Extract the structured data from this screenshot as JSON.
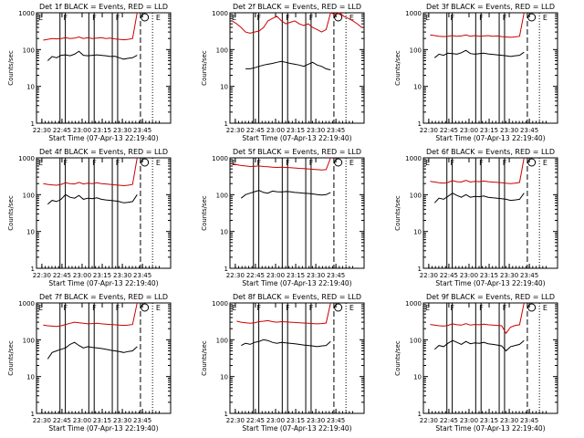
{
  "chart_data": [
    {
      "type": "line",
      "title": "Det 1f BLACK = Events, RED = LLD",
      "ylabel": "Counts/sec",
      "xlabel": "Start Time (07-Apr-13 22:19:40)",
      "x_ticks": [
        "22:30",
        "22:45",
        "23:00",
        "23:15",
        "23:30",
        "23:45"
      ],
      "y_ticks": [
        "1",
        "10",
        "100",
        "1000"
      ],
      "yscale": "log",
      "ylim": [
        1,
        1000
      ],
      "markers": [
        "F",
        "F",
        "F",
        "S",
        "E"
      ],
      "series": [
        {
          "color": "#000000",
          "values": [
            null,
            null,
            50,
            65,
            60,
            70,
            72,
            68,
            75,
            90,
            70,
            68,
            70,
            72,
            70,
            68,
            65,
            66,
            60,
            55,
            58,
            60,
            70,
            null,
            null,
            null,
            null,
            null,
            null,
            null
          ]
        },
        {
          "color": "#cc0000",
          "values": [
            null,
            180,
            190,
            200,
            195,
            200,
            210,
            200,
            205,
            220,
            200,
            210,
            200,
            205,
            210,
            200,
            205,
            195,
            190,
            185,
            190,
            200,
            1000,
            null,
            null,
            null,
            null,
            null,
            null,
            null
          ]
        }
      ]
    },
    {
      "type": "line",
      "title": "Det 2f BLACK = Events, RED = LLD",
      "ylabel": "Counts/sec",
      "xlabel": "Start Time (07-Apr-13 22:19:40)",
      "x_ticks": [
        "22:30",
        "22:45",
        "23:00",
        "23:15",
        "23:30",
        "23:45"
      ],
      "y_ticks": [
        "1",
        "10",
        "100",
        "1000"
      ],
      "yscale": "log",
      "ylim": [
        1,
        1000
      ],
      "markers": [
        "F",
        "F",
        "F",
        "S",
        "E"
      ],
      "series": [
        {
          "color": "#000000",
          "values": [
            null,
            null,
            null,
            30,
            30,
            32,
            35,
            38,
            40,
            42,
            45,
            48,
            45,
            42,
            40,
            38,
            35,
            40,
            45,
            38,
            35,
            30,
            28,
            null,
            null,
            null,
            null,
            null,
            null,
            null
          ]
        },
        {
          "color": "#cc0000",
          "values": [
            600,
            500,
            400,
            300,
            280,
            300,
            320,
            400,
            600,
            700,
            800,
            600,
            500,
            550,
            600,
            500,
            450,
            500,
            400,
            350,
            300,
            350,
            1000,
            900,
            1000,
            800,
            700,
            600,
            500,
            400
          ]
        }
      ]
    },
    {
      "type": "line",
      "title": "Det 3f BLACK = Events, RED = LLD",
      "ylabel": "Counts/sec",
      "xlabel": "Start Time (07-Apr-13 22:19:40)",
      "x_ticks": [
        "22:30",
        "22:45",
        "23:00",
        "23:15",
        "23:30",
        "23:45"
      ],
      "y_ticks": [
        "1",
        "10",
        "100",
        "1000"
      ],
      "yscale": "log",
      "ylim": [
        1,
        1000
      ],
      "markers": [
        "F",
        "F",
        "F",
        "S",
        "E"
      ],
      "series": [
        {
          "color": "#000000",
          "values": [
            null,
            null,
            60,
            75,
            70,
            80,
            78,
            75,
            82,
            95,
            78,
            75,
            78,
            80,
            76,
            74,
            72,
            70,
            68,
            65,
            68,
            70,
            85,
            null,
            null,
            null,
            null,
            null,
            null,
            null
          ]
        },
        {
          "color": "#cc0000",
          "values": [
            null,
            250,
            240,
            230,
            225,
            230,
            240,
            230,
            235,
            250,
            230,
            240,
            230,
            235,
            240,
            230,
            235,
            225,
            220,
            215,
            220,
            230,
            1000,
            null,
            null,
            null,
            null,
            null,
            null,
            null
          ]
        }
      ]
    },
    {
      "type": "line",
      "title": "Det 4f BLACK = Events, RED = LLD",
      "ylabel": "Counts/sec",
      "xlabel": "Start Time (07-Apr-13 22:19:40)",
      "x_ticks": [
        "22:30",
        "22:45",
        "23:00",
        "23:15",
        "23:30",
        "23:45"
      ],
      "y_ticks": [
        "1",
        "10",
        "100",
        "1000"
      ],
      "yscale": "log",
      "ylim": [
        1,
        1000
      ],
      "markers": [
        "F",
        "F",
        "F",
        "S",
        "E"
      ],
      "series": [
        {
          "color": "#000000",
          "values": [
            null,
            null,
            55,
            70,
            65,
            75,
            100,
            85,
            80,
            95,
            75,
            80,
            78,
            82,
            75,
            72,
            70,
            68,
            65,
            60,
            62,
            65,
            100,
            null,
            null,
            null,
            null,
            null,
            null,
            null
          ]
        },
        {
          "color": "#cc0000",
          "values": [
            null,
            200,
            190,
            185,
            180,
            190,
            210,
            200,
            195,
            215,
            195,
            205,
            200,
            210,
            200,
            195,
            190,
            185,
            180,
            175,
            180,
            190,
            1000,
            null,
            null,
            null,
            null,
            null,
            null,
            null
          ]
        }
      ]
    },
    {
      "type": "line",
      "title": "Det 5f BLACK = Events, RED = LLD",
      "ylabel": "Counts/sec",
      "xlabel": "Start Time (07-Apr-13 22:19:40)",
      "x_ticks": [
        "22:30",
        "22:45",
        "23:00",
        "23:15",
        "23:30",
        "23:45"
      ],
      "y_ticks": [
        "1",
        "10",
        "100",
        "1000"
      ],
      "yscale": "log",
      "ylim": [
        1,
        1000
      ],
      "markers": [
        "F",
        "F",
        "F",
        "S",
        "E"
      ],
      "series": [
        {
          "color": "#000000",
          "values": [
            null,
            null,
            80,
            100,
            110,
            120,
            130,
            115,
            110,
            125,
            120,
            118,
            122,
            120,
            115,
            112,
            110,
            108,
            105,
            100,
            98,
            100,
            115,
            null,
            null,
            null,
            null,
            null,
            null,
            null
          ]
        },
        {
          "color": "#cc0000",
          "values": [
            700,
            650,
            620,
            600,
            580,
            590,
            600,
            580,
            570,
            560,
            550,
            560,
            550,
            540,
            530,
            520,
            510,
            500,
            490,
            480,
            470,
            480,
            1000,
            null,
            null,
            null,
            null,
            null,
            null,
            null
          ]
        }
      ]
    },
    {
      "type": "line",
      "title": "Det 6f BLACK = Events, RED = LLD",
      "ylabel": "Counts/sec",
      "xlabel": "Start Time (07-Apr-13 22:19:40)",
      "x_ticks": [
        "22:30",
        "22:45",
        "23:00",
        "23:15",
        "23:30",
        "23:45"
      ],
      "y_ticks": [
        "1",
        "10",
        "100",
        "1000"
      ],
      "yscale": "log",
      "ylim": [
        1,
        1000
      ],
      "markers": [
        "F",
        "F",
        "F",
        "S",
        "E"
      ],
      "series": [
        {
          "color": "#000000",
          "values": [
            null,
            null,
            60,
            80,
            75,
            90,
            110,
            95,
            85,
            100,
            85,
            90,
            88,
            92,
            85,
            82,
            80,
            78,
            75,
            70,
            72,
            75,
            110,
            null,
            null,
            null,
            null,
            null,
            null,
            null
          ]
        },
        {
          "color": "#cc0000",
          "values": [
            null,
            230,
            220,
            210,
            205,
            215,
            240,
            225,
            220,
            245,
            220,
            230,
            225,
            235,
            225,
            220,
            215,
            210,
            205,
            200,
            205,
            215,
            1000,
            null,
            null,
            null,
            null,
            null,
            null,
            null
          ]
        }
      ]
    },
    {
      "type": "line",
      "title": "Det 7f BLACK = Events, RED = LLD",
      "ylabel": "Counts/sec",
      "xlabel": "Start Time (07-Apr-13 22:19:40)",
      "x_ticks": [
        "22:30",
        "22:45",
        "23:00",
        "23:15",
        "23:30",
        "23:45"
      ],
      "y_ticks": [
        "1",
        "10",
        "100",
        "1000"
      ],
      "yscale": "log",
      "ylim": [
        1,
        1000
      ],
      "markers": [
        "F",
        "F",
        "F",
        "S",
        "E"
      ],
      "series": [
        {
          "color": "#000000",
          "values": [
            null,
            null,
            30,
            45,
            50,
            55,
            60,
            75,
            85,
            70,
            60,
            65,
            62,
            60,
            58,
            55,
            52,
            50,
            48,
            45,
            48,
            50,
            65,
            null,
            null,
            null,
            null,
            null,
            null,
            null
          ]
        },
        {
          "color": "#cc0000",
          "values": [
            null,
            250,
            240,
            235,
            230,
            240,
            260,
            280,
            300,
            290,
            280,
            270,
            275,
            280,
            270,
            265,
            260,
            255,
            250,
            245,
            250,
            260,
            1000,
            null,
            null,
            null,
            null,
            null,
            null,
            null
          ]
        }
      ]
    },
    {
      "type": "line",
      "title": "Det 8f BLACK = Events, RED = LLD",
      "ylabel": "Counts/sec",
      "xlabel": "Start Time (07-Apr-13 22:19:40)",
      "x_ticks": [
        "22:30",
        "22:45",
        "23:00",
        "23:15",
        "23:30",
        "23:45"
      ],
      "y_ticks": [
        "1",
        "10",
        "100",
        "1000"
      ],
      "yscale": "log",
      "ylim": [
        1,
        1000
      ],
      "markers": [
        "F",
        "F",
        "F",
        "S",
        "E"
      ],
      "series": [
        {
          "color": "#000000",
          "values": [
            null,
            null,
            70,
            80,
            75,
            85,
            90,
            100,
            95,
            85,
            80,
            85,
            82,
            80,
            78,
            75,
            72,
            70,
            68,
            65,
            68,
            70,
            90,
            null,
            null,
            null,
            null,
            null,
            null,
            null
          ]
        },
        {
          "color": "#cc0000",
          "values": [
            null,
            320,
            300,
            290,
            280,
            290,
            310,
            320,
            330,
            310,
            300,
            310,
            305,
            300,
            295,
            290,
            285,
            280,
            275,
            270,
            275,
            285,
            1000,
            null,
            null,
            null,
            null,
            null,
            null,
            null
          ]
        }
      ]
    },
    {
      "type": "line",
      "title": "Det 9f BLACK = Events, RED = LLD",
      "ylabel": "Counts/sec",
      "xlabel": "Start Time (07-Apr-13 22:19:40)",
      "x_ticks": [
        "22:30",
        "22:45",
        "23:00",
        "23:15",
        "23:30",
        "23:45"
      ],
      "y_ticks": [
        "1",
        "10",
        "100",
        "1000"
      ],
      "yscale": "log",
      "ylim": [
        1,
        1000
      ],
      "markers": [
        "F",
        "F",
        "F",
        "S",
        "E"
      ],
      "series": [
        {
          "color": "#000000",
          "values": [
            null,
            null,
            55,
            70,
            65,
            80,
            95,
            85,
            75,
            90,
            78,
            82,
            80,
            85,
            78,
            75,
            72,
            68,
            50,
            65,
            70,
            75,
            95,
            null,
            null,
            null,
            null,
            null,
            null,
            null
          ]
        },
        {
          "color": "#cc0000",
          "values": [
            null,
            260,
            250,
            240,
            235,
            245,
            270,
            255,
            250,
            275,
            250,
            260,
            255,
            265,
            255,
            250,
            245,
            240,
            150,
            220,
            245,
            255,
            1000,
            null,
            null,
            null,
            null,
            null,
            null,
            null
          ]
        }
      ]
    }
  ]
}
